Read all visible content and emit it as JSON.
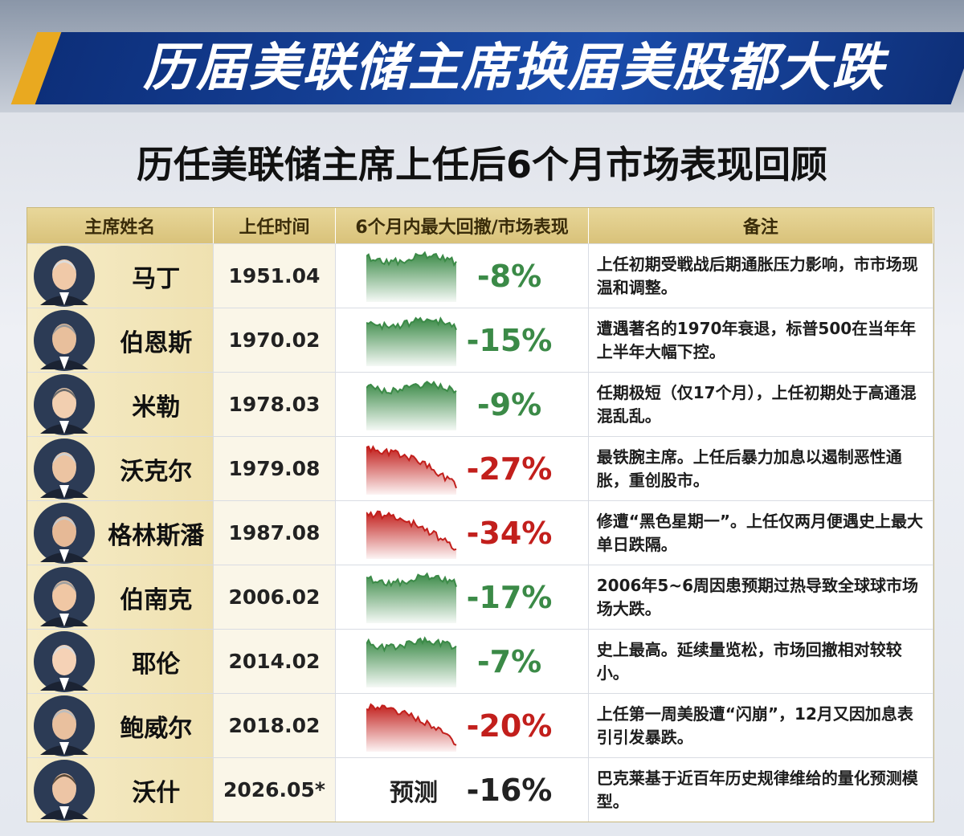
{
  "header": {
    "title": "历届美联储主席换届美股都大跌",
    "subtitle": "历任美联储主席上任后6个月市场表现回顾"
  },
  "table": {
    "columns": [
      "主席姓名",
      "上任时间",
      "6个月内最大回撤/市场表现",
      "备注"
    ],
    "rows": [
      {
        "name": "马丁",
        "date": "1951.04",
        "change": "-8%",
        "color": "#3b8a47",
        "note": "上任初期受戦战后期通胀压力影响，市市场现温和调整。"
      },
      {
        "name": "伯恩斯",
        "date": "1970.02",
        "change": "-15%",
        "color": "#3b8a47",
        "note": "遭遇著名的1970年衰退，标普500在当年年上半年大幅下控。"
      },
      {
        "name": "米勒",
        "date": "1978.03",
        "change": "-9%",
        "color": "#3b8a47",
        "note": "任期极短（仅17个月），上任初期处于高通混混乱乱。"
      },
      {
        "name": "沃克尔",
        "date": "1979.08",
        "change": "-27%",
        "color": "#c21f1c",
        "note": "最铁腕主席。上任后暴力加息以遏制恶性通胀，重创股市。"
      },
      {
        "name": "格林斯潘",
        "date": "1987.08",
        "change": "-34%",
        "color": "#c21f1c",
        "note": "修遭“黑色星期一”。上任仅两月便遇史上最大单日跌隔。"
      },
      {
        "name": "伯南克",
        "date": "2006.02",
        "change": "-17%",
        "color": "#3b8a47",
        "note": "2006年5~6周因患预期过热导致全球球市场场大跌。"
      },
      {
        "name": "耶伦",
        "date": "2014.02",
        "change": "-7%",
        "color": "#3b8a47",
        "note": "史上最高。延续量览松，市场回撤相对较较小。"
      },
      {
        "name": "鲍威尔",
        "date": "2018.02",
        "change": "-20%",
        "color": "#c21f1c",
        "note": "上任第一周美股遭“闪崩”，12月又因加息表引引发暴跌。"
      },
      {
        "name": "沃什",
        "date": "2026.05*",
        "label": "预测",
        "change": "-16%",
        "note": "巴克莱基于近百年历史规律维给的量化预测模型。"
      }
    ]
  }
}
